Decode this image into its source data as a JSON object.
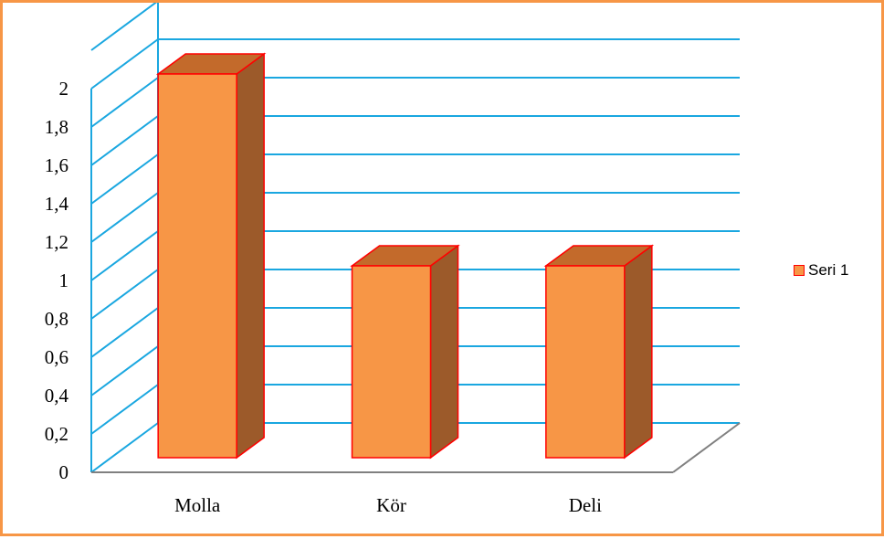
{
  "chart_data": {
    "type": "bar",
    "categories": [
      "Molla",
      "Kör",
      "Deli"
    ],
    "series": [
      {
        "name": "Seri 1",
        "values": [
          2,
          1,
          1
        ]
      }
    ],
    "ylim": [
      0,
      2
    ],
    "ytick_labels": [
      "0",
      "0,2",
      "0,4",
      "0,6",
      "0,8",
      "1",
      "1,2",
      "1,4",
      "1,6",
      "1,8",
      "2"
    ],
    "grid": true,
    "legend_position": "right",
    "colors": {
      "bar_face": "#f79646",
      "bar_side": "#9c5a2a",
      "bar_top": "#c36a2b",
      "bar_outline": "#ff0000",
      "gridlines": "#1aa7e0",
      "frame": "#f79646"
    }
  }
}
